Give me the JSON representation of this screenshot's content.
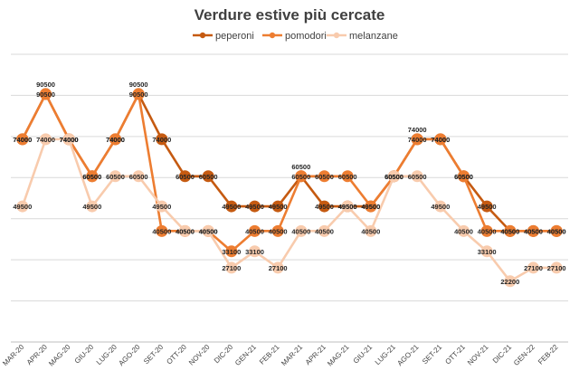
{
  "chart_data": {
    "type": "line",
    "title": "Verdure estive più cercate",
    "xlabel": "",
    "ylabel": "",
    "ylim": [
      0,
      105000
    ],
    "grid": true,
    "legend_position": "top",
    "categories": [
      "MAR-20",
      "APR-20",
      "MAG-20",
      "GIU-20",
      "LUG-20",
      "AGO-20",
      "SET-20",
      "OTT-20",
      "NOV-20",
      "DIC-20",
      "GEN-21",
      "FEB-21",
      "MAR-21",
      "APR-21",
      "MAG-21",
      "GIU-21",
      "LUG-21",
      "AGO-21",
      "SET-21",
      "OTT-21",
      "NOV-21",
      "DIC-21",
      "GEN-22",
      "FEB-22"
    ],
    "series": [
      {
        "name": "peperoni",
        "color": "#C55A11",
        "values": [
          74000,
          90500,
          74000,
          60500,
          74000,
          90500,
          74000,
          60500,
          60500,
          49500,
          49500,
          49500,
          60500,
          49500,
          49500,
          49500,
          60500,
          74000,
          74000,
          60500,
          49500,
          40500,
          40500,
          40500
        ]
      },
      {
        "name": "pomodori",
        "color": "#ED7D31",
        "values": [
          74000,
          90500,
          74000,
          60500,
          74000,
          90500,
          40500,
          40500,
          40500,
          33100,
          40500,
          40500,
          60500,
          60500,
          60500,
          49500,
          60500,
          74000,
          74000,
          60500,
          40500,
          40500,
          40500,
          40500
        ]
      },
      {
        "name": "melanzane",
        "color": "#F8CBAD",
        "values": [
          49500,
          74000,
          74000,
          49500,
          60500,
          60500,
          49500,
          40500,
          40500,
          27100,
          33100,
          27100,
          40500,
          40500,
          49500,
          40500,
          60500,
          60500,
          49500,
          40500,
          33100,
          22200,
          27100,
          27100
        ]
      }
    ]
  }
}
